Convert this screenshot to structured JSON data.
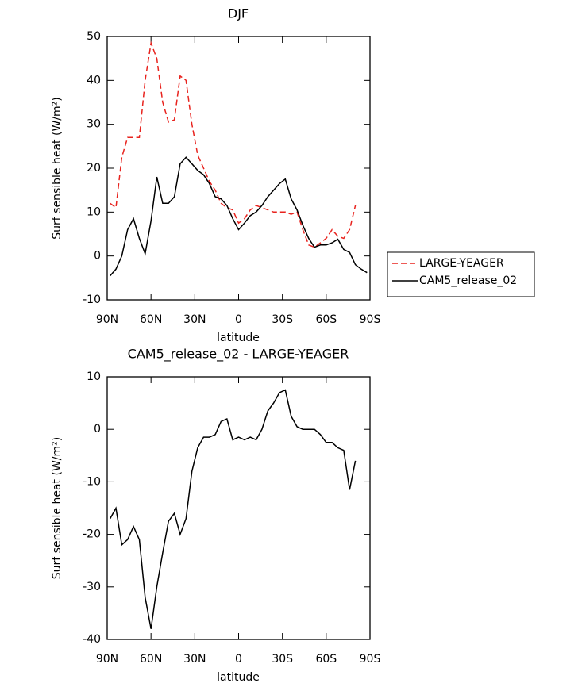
{
  "chart_data": [
    {
      "type": "line",
      "title": "DJF",
      "xlabel": "latitude",
      "ylabel": "Surf sensible heat (W/m²)",
      "x": [
        88,
        84,
        80,
        76,
        72,
        68,
        64,
        60,
        56,
        52,
        48,
        44,
        40,
        36,
        32,
        28,
        24,
        20,
        16,
        12,
        8,
        4,
        0,
        -4,
        -8,
        -12,
        -16,
        -20,
        -24,
        -28,
        -32,
        -36,
        -40,
        -44,
        -48,
        -52,
        -56,
        -60,
        -64,
        -68,
        -72,
        -76,
        -80,
        -84,
        -88
      ],
      "series": [
        {
          "name": "LARGE-YEAGER",
          "color": "#e8231e",
          "style": "dashed",
          "values": [
            12,
            11,
            22.5,
            27,
            27,
            27,
            40,
            48.5,
            45,
            35,
            30.5,
            31,
            41,
            40,
            30,
            23,
            20,
            17,
            15,
            12,
            11,
            10.5,
            7.5,
            8.5,
            10.5,
            11.5,
            11,
            10.5,
            10,
            10,
            10,
            9.5,
            10,
            6,
            2.5,
            2,
            3,
            4,
            6,
            4.5,
            4,
            6,
            11.5,
            null,
            null
          ]
        },
        {
          "name": "CAM5_release_02",
          "color": "#000000",
          "style": "solid",
          "values": [
            -4.5,
            -3,
            0,
            6,
            8.5,
            4,
            0.5,
            8,
            18,
            12,
            12,
            13.5,
            21,
            22.5,
            21,
            19.5,
            18.5,
            16.5,
            13.5,
            13,
            11.5,
            8.5,
            6,
            7.5,
            9.2,
            10,
            11.5,
            13.5,
            15,
            16.5,
            17.5,
            13,
            10.5,
            7,
            4,
            2,
            2.5,
            2.5,
            3,
            3.8,
            1.5,
            0.8,
            -2,
            -3,
            -3.8
          ]
        }
      ],
      "xlim": [
        90,
        -90
      ],
      "xticks": [
        {
          "value": 90,
          "label": "90N"
        },
        {
          "value": 60,
          "label": "60N"
        },
        {
          "value": 30,
          "label": "30N"
        },
        0,
        {
          "value": -30,
          "label": "30S"
        },
        {
          "value": -60,
          "label": "60S"
        },
        {
          "value": -90,
          "label": "90S"
        }
      ],
      "ylim": [
        -10,
        50
      ],
      "yticks": [
        -10,
        0,
        10,
        20,
        30,
        40,
        50
      ],
      "legend": "right"
    },
    {
      "type": "line",
      "title": "CAM5_release_02 - LARGE-YEAGER",
      "xlabel": "latitude",
      "ylabel": "Surf sensible heat (W/m²)",
      "x": [
        88,
        84,
        80,
        76,
        72,
        68,
        64,
        60,
        56,
        52,
        48,
        44,
        40,
        36,
        32,
        28,
        24,
        20,
        16,
        12,
        8,
        4,
        0,
        -4,
        -8,
        -12,
        -16,
        -20,
        -24,
        -28,
        -32,
        -36,
        -40,
        -44,
        -48,
        -52,
        -56,
        -60,
        -64,
        -68,
        -72,
        -76,
        -80,
        -84,
        -88
      ],
      "color": "#000000",
      "values": [
        -17,
        -15,
        -22,
        -21,
        -18.5,
        -21,
        -32,
        -38,
        -30,
        -23.5,
        -17.5,
        -16,
        -20,
        -17,
        -8,
        -3.5,
        -1.5,
        -1.5,
        -1,
        1.5,
        2,
        -2,
        -1.5,
        -2,
        -1.5,
        -2,
        0,
        3.5,
        5,
        7,
        7.5,
        2.5,
        0.5,
        0,
        0,
        0,
        -1,
        -2.5,
        -2.5,
        -3.5,
        -4,
        -11.5,
        -6,
        null,
        null
      ],
      "xlim": [
        90,
        -90
      ],
      "xticks": [
        {
          "value": 90,
          "label": "90N"
        },
        {
          "value": 60,
          "label": "60N"
        },
        {
          "value": 30,
          "label": "30N"
        },
        0,
        {
          "value": -30,
          "label": "30S"
        },
        {
          "value": -60,
          "label": "60S"
        },
        {
          "value": -90,
          "label": "90S"
        }
      ],
      "ylim": [
        -40,
        10
      ],
      "yticks": [
        -40,
        -30,
        -20,
        -10,
        0,
        10
      ]
    }
  ]
}
